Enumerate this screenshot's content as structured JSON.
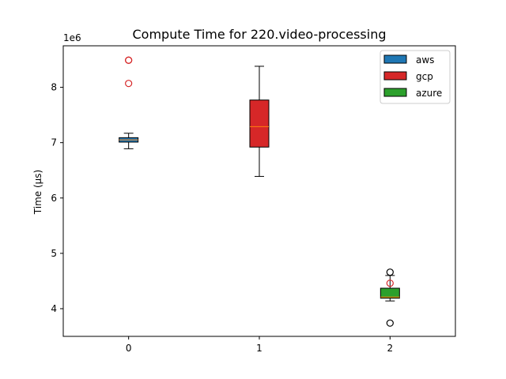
{
  "chart_data": {
    "type": "box",
    "title": "Compute Time for 220.video-processing",
    "xlabel": "",
    "ylabel": "Time (μs)",
    "y_scale_label": "1e6",
    "y_scale": 1000000,
    "ylim": [
      3500000,
      8750000
    ],
    "xlim": [
      -0.5,
      2.5
    ],
    "x_ticks": [
      "0",
      "1",
      "2"
    ],
    "y_ticks": [
      "4",
      "5",
      "6",
      "7",
      "8"
    ],
    "y_tick_values": [
      4000000,
      5000000,
      6000000,
      7000000,
      8000000
    ],
    "legend_position": "top-right",
    "grid": false,
    "series": [
      {
        "name": "aws",
        "color": "#1f77b4",
        "x": 0,
        "whisker_low": 6890000,
        "q1": 7010000,
        "median": 7050000,
        "q3": 7090000,
        "whisker_high": 7170000,
        "outliers": [
          8490000,
          8490000,
          8070000
        ],
        "outlier_color": "#d62728"
      },
      {
        "name": "gcp",
        "color": "#d62728",
        "x": 1,
        "whisker_low": 6390000,
        "q1": 6920000,
        "median": 7290000,
        "q3": 7770000,
        "whisker_high": 8380000,
        "outliers": [],
        "outlier_color": "#d62728"
      },
      {
        "name": "azure",
        "color": "#2ca02c",
        "x": 2,
        "whisker_low": 4140000,
        "q1": 4190000,
        "median": 4210000,
        "q3": 4370000,
        "whisker_high": 4600000,
        "outliers": [
          4660000,
          3740000
        ],
        "outlier_color": "#000000",
        "extra_outliers": [
          4460000
        ],
        "extra_outlier_color": "#d62728"
      }
    ]
  }
}
